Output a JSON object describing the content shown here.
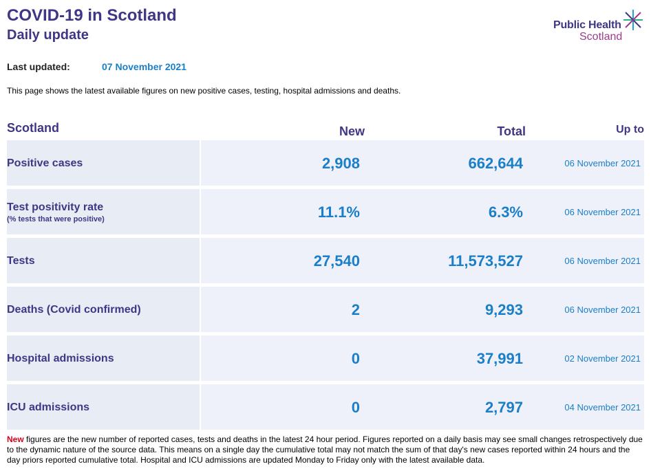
{
  "header": {
    "title": "COVID-19 in Scotland",
    "subtitle": "Daily update",
    "logo_line1": "Public Health",
    "logo_line2": "Scotland"
  },
  "last_updated": {
    "label": "Last updated:",
    "date": "07 November 2021"
  },
  "intro": "This page shows the latest available figures on new positive cases, testing, hospital admissions and deaths.",
  "table": {
    "headers": {
      "area": "Scotland",
      "new": "New",
      "total": "Total",
      "upto": "Up to"
    },
    "rows": [
      {
        "label": "Positive cases",
        "sublabel": "",
        "new": "2,908",
        "total": "662,644",
        "upto": "06 November 2021"
      },
      {
        "label": "Test positivity rate",
        "sublabel": "(% tests that were positive)",
        "new": "11.1%",
        "total": "6.3%",
        "upto": "06 November 2021"
      },
      {
        "label": "Tests",
        "sublabel": "",
        "new": "27,540",
        "total": "11,573,527",
        "upto": "06 November 2021"
      },
      {
        "label": "Deaths (Covid confirmed)",
        "sublabel": "",
        "new": "2",
        "total": "9,293",
        "upto": "06 November 2021"
      },
      {
        "label": "Hospital admissions",
        "sublabel": "",
        "new": "0",
        "total": "37,991",
        "upto": "02 November 2021"
      },
      {
        "label": "ICU admissions",
        "sublabel": "",
        "new": "0",
        "total": "2,797",
        "upto": "04 November 2021"
      }
    ]
  },
  "footnote": {
    "highlight": "New",
    "text": " figures are the new number of reported cases, tests and deaths in the latest 24 hour period. Figures reported on a daily basis may see small changes retrospectively due to the dynamic nature of the source data. This means on a single day the cumulative total may not match the sum of that day's new cases reported within 24 hours and the day priors reported cumulative total. Hospital and ICU admissions are updated Monday to Friday only with the latest available data."
  },
  "colors": {
    "brand_purple": "#3f3685",
    "accent_blue": "#1a7ec8",
    "logo_magenta": "#9e3a8c",
    "note_red": "#d6001c"
  }
}
